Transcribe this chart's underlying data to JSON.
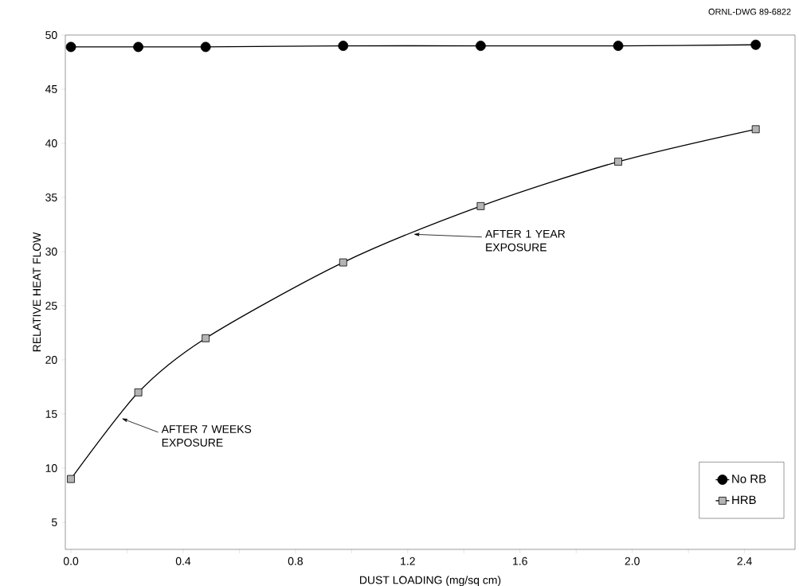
{
  "chart_data": {
    "type": "line",
    "xlabel": "DUST LOADING (mg/sq cm)",
    "ylabel": "RELATIVE HEAT FLOW",
    "xlim": [
      -0.02,
      2.58
    ],
    "ylim": [
      2.5,
      50
    ],
    "xticks": [
      {
        "value": 0,
        "label": "0.0"
      },
      {
        "value": 0.2,
        "label": null
      },
      {
        "value": 0.4,
        "label": "0.4"
      },
      {
        "value": 0.6,
        "label": null
      },
      {
        "value": 0.8,
        "label": "0.8"
      },
      {
        "value": 1.0,
        "label": null
      },
      {
        "value": 1.2,
        "label": "1.2"
      },
      {
        "value": 1.4,
        "label": null
      },
      {
        "value": 1.6,
        "label": "1.6"
      },
      {
        "value": 1.8,
        "label": null
      },
      {
        "value": 2.0,
        "label": "2.0"
      },
      {
        "value": 2.2,
        "label": null
      },
      {
        "value": 2.4,
        "label": "2.4"
      }
    ],
    "yticks": [
      5,
      10,
      15,
      20,
      25,
      30,
      35,
      40,
      45,
      50
    ],
    "legend": "bottom right",
    "grid": false,
    "series": [
      {
        "name": "No RB",
        "color": "#000000",
        "marker": "circle",
        "x": [
          0,
          0.24,
          0.48,
          0.97,
          1.46,
          1.95,
          2.44
        ],
        "values": [
          48.9,
          48.9,
          48.9,
          49.0,
          49.0,
          49.0,
          49.1
        ]
      },
      {
        "name": "HRB",
        "color": "#b4b4b4",
        "marker": "square",
        "x": [
          0,
          0.24,
          0.48,
          0.97,
          1.46,
          1.95,
          2.44
        ],
        "values": [
          9,
          17,
          22,
          29,
          34.2,
          38.3,
          41.3
        ]
      }
    ],
    "annotations": [
      {
        "text": "AFTER 1 YEAR EXPOSURE",
        "x": 1.22,
        "y": 31.6
      },
      {
        "text": "AFTER 7 WEEKS EXPOSURE",
        "x": 0.18,
        "y": 14.6
      },
      "ORNL-DWG 89-6822"
    ]
  }
}
